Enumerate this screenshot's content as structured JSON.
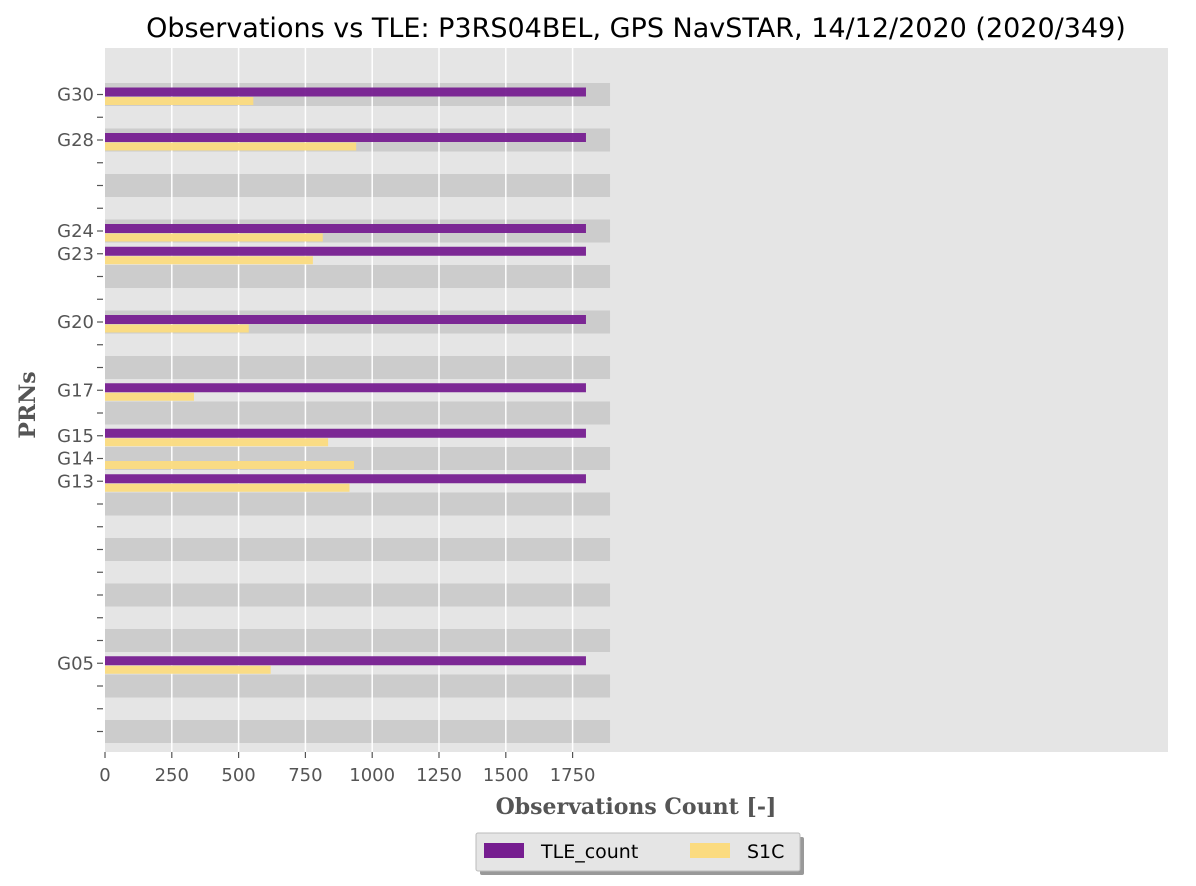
{
  "chart_data": {
    "type": "bar",
    "orientation": "horizontal",
    "title": "Observations vs TLE: P3RS04BEL, GPS NavSTAR, 14/12/2020 (2020/349)",
    "xlabel": "Observations Count [-]",
    "ylabel": "PRNs",
    "xlim": [
      0,
      1980
    ],
    "x_ticks": [
      0,
      250,
      500,
      750,
      1000,
      1250,
      1500,
      1750
    ],
    "grid": true,
    "legend_position": "bottom-center",
    "slot_count": 29,
    "labeled_slots": [
      {
        "slot": 0,
        "label": "G30"
      },
      {
        "slot": 2,
        "label": "G28"
      },
      {
        "slot": 6,
        "label": "G24"
      },
      {
        "slot": 7,
        "label": "G23"
      },
      {
        "slot": 10,
        "label": "G20"
      },
      {
        "slot": 13,
        "label": "G17"
      },
      {
        "slot": 15,
        "label": "G15"
      },
      {
        "slot": 16,
        "label": "G14"
      },
      {
        "slot": 17,
        "label": "G13"
      },
      {
        "slot": 25,
        "label": "G05"
      }
    ],
    "categories": [
      "G30",
      "G28",
      "G24",
      "G23",
      "G20",
      "G17",
      "G15",
      "G14",
      "G13",
      "G05"
    ],
    "series": [
      {
        "name": "TLE_count",
        "color": "#761d90",
        "values": [
          1800,
          1800,
          1800,
          1800,
          1800,
          1800,
          1800,
          0,
          1800,
          1800
        ]
      },
      {
        "name": "S1C",
        "color": "#fbdb7f",
        "values": [
          555,
          940,
          815,
          778,
          538,
          333,
          835,
          932,
          915,
          620
        ]
      }
    ],
    "band_colors": [
      "#cccccc",
      "#e5e5e5"
    ],
    "band_max": 1890
  }
}
